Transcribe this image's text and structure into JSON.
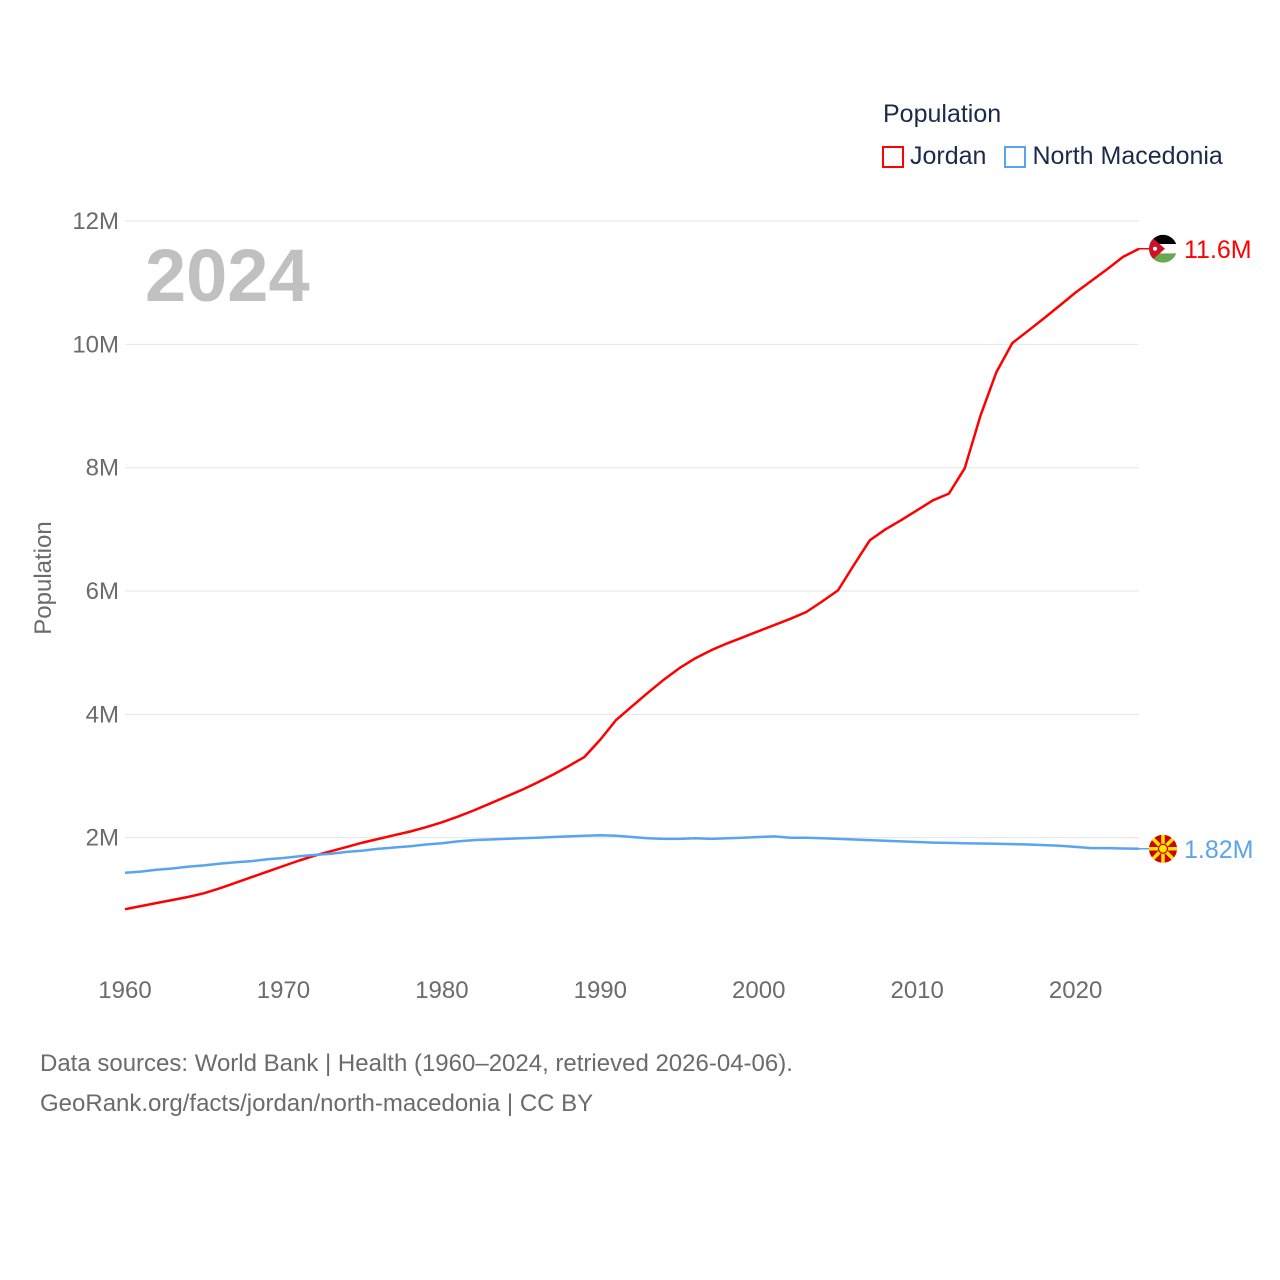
{
  "chart_data": {
    "type": "line",
    "title": "",
    "year_label": "2024",
    "ylabel": "Population",
    "xlabel": "",
    "xlim": [
      1960,
      2024
    ],
    "ylim": [
      0,
      12000000
    ],
    "x_ticks": [
      1960,
      1970,
      1980,
      1990,
      2000,
      2010,
      2020
    ],
    "x_tick_labels": [
      "1960",
      "1970",
      "1980",
      "1990",
      "2000",
      "2010",
      "2020"
    ],
    "y_ticks": [
      2000000,
      4000000,
      6000000,
      8000000,
      10000000,
      12000000
    ],
    "y_tick_labels": [
      "2M",
      "4M",
      "6M",
      "8M",
      "10M",
      "12M"
    ],
    "grid": true,
    "legend": {
      "title": "Population",
      "placement": "top-right"
    },
    "x": [
      1960,
      1961,
      1962,
      1963,
      1964,
      1965,
      1966,
      1967,
      1968,
      1969,
      1970,
      1971,
      1972,
      1973,
      1974,
      1975,
      1976,
      1977,
      1978,
      1979,
      1980,
      1981,
      1982,
      1983,
      1984,
      1985,
      1986,
      1987,
      1988,
      1989,
      1990,
      1991,
      1992,
      1993,
      1994,
      1995,
      1996,
      1997,
      1998,
      1999,
      2000,
      2001,
      2002,
      2003,
      2004,
      2005,
      2006,
      2007,
      2008,
      2009,
      2010,
      2011,
      2012,
      2013,
      2014,
      2015,
      2016,
      2017,
      2018,
      2019,
      2020,
      2021,
      2022,
      2023,
      2024
    ],
    "series": [
      {
        "name": "Jordan",
        "color": "#ff0000",
        "end_label": "11.6M",
        "flag": "jordan-flag",
        "values_millions": [
          0.84,
          0.89,
          0.94,
          0.99,
          1.04,
          1.1,
          1.18,
          1.27,
          1.36,
          1.45,
          1.54,
          1.63,
          1.71,
          1.78,
          1.85,
          1.92,
          1.98,
          2.04,
          2.1,
          2.17,
          2.25,
          2.34,
          2.44,
          2.55,
          2.66,
          2.77,
          2.89,
          3.02,
          3.16,
          3.31,
          3.59,
          3.91,
          4.13,
          4.35,
          4.56,
          4.75,
          4.91,
          5.04,
          5.15,
          5.25,
          5.35,
          5.45,
          5.55,
          5.66,
          5.83,
          6.01,
          6.42,
          6.82,
          7.0,
          7.15,
          7.31,
          7.47,
          7.58,
          7.99,
          8.85,
          9.55,
          10.02,
          10.22,
          10.42,
          10.63,
          10.84,
          11.03,
          11.22,
          11.42,
          11.55
        ]
      },
      {
        "name": "North Macedonia",
        "color": "#5aa4ef",
        "end_label": "1.82M",
        "flag": "north-macedonia-flag",
        "values_millions": [
          1.43,
          1.45,
          1.48,
          1.5,
          1.53,
          1.55,
          1.58,
          1.6,
          1.62,
          1.65,
          1.67,
          1.7,
          1.72,
          1.74,
          1.77,
          1.79,
          1.82,
          1.84,
          1.86,
          1.89,
          1.91,
          1.94,
          1.96,
          1.97,
          1.98,
          1.99,
          2.0,
          2.01,
          2.02,
          2.03,
          2.04,
          2.03,
          2.01,
          1.99,
          1.98,
          1.98,
          1.99,
          1.98,
          1.99,
          2.0,
          2.01,
          2.02,
          2.0,
          2.0,
          1.99,
          1.98,
          1.97,
          1.96,
          1.95,
          1.94,
          1.93,
          1.92,
          1.915,
          1.91,
          1.905,
          1.9,
          1.895,
          1.89,
          1.88,
          1.87,
          1.85,
          1.83,
          1.83,
          1.825,
          1.82
        ]
      }
    ]
  },
  "footer": {
    "line1": "Data sources: World Bank | Health (1960–2024, retrieved 2026-04-06).",
    "line2": "GeoRank.org/facts/jordan/north-macedonia | CC BY"
  }
}
